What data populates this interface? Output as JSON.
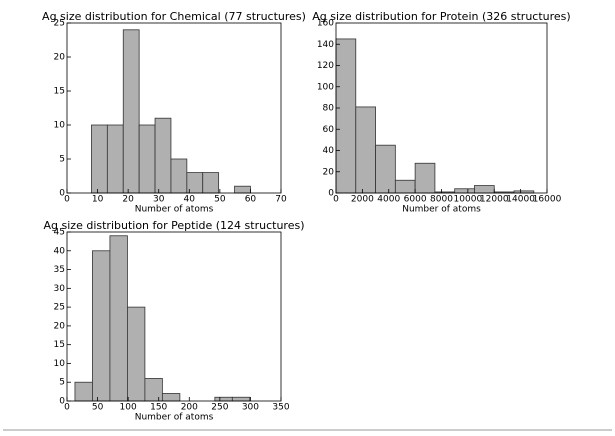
{
  "chart_data": [
    {
      "type": "histogram",
      "title": "Ag size distribution for Chemical (77 structures)",
      "xlabel": "Number of atoms",
      "bins": [
        8,
        13.2,
        18.4,
        23.6,
        28.8,
        34,
        39.2,
        44.4,
        49.6,
        54.8,
        60
      ],
      "values": [
        10,
        10,
        24,
        10,
        11,
        5,
        3,
        3,
        0,
        1
      ],
      "color": "#b0b0b0",
      "xlim": [
        0,
        70
      ],
      "xticks": [
        0,
        10,
        20,
        30,
        40,
        50,
        60,
        70
      ],
      "ylim": [
        0,
        25
      ],
      "yticks": [
        0,
        5,
        10,
        15,
        20,
        25
      ]
    },
    {
      "type": "histogram",
      "title": "Ag size distribution for Protein (326 structures)",
      "xlabel": "Number of atoms",
      "bins": [
        0,
        1500,
        3000,
        4500,
        6000,
        7500,
        9000,
        10500,
        12000,
        13500,
        15000
      ],
      "values": [
        145,
        81,
        45,
        12,
        28,
        1,
        4,
        7,
        1,
        2
      ],
      "color": "#b0b0b0",
      "xlim": [
        0,
        16000
      ],
      "xticks": [
        0,
        2000,
        4000,
        6000,
        8000,
        10000,
        12000,
        14000,
        16000
      ],
      "ylim": [
        0,
        160
      ],
      "yticks": [
        0,
        20,
        40,
        60,
        80,
        100,
        120,
        140,
        160
      ]
    },
    {
      "type": "histogram",
      "title": "Ag size distribution for Peptide (124 structures)",
      "xlabel": "Number of atoms",
      "bins": [
        13,
        41.6,
        70.2,
        98.8,
        127.4,
        156,
        184.6,
        213.2,
        241.8,
        270.4,
        299
      ],
      "values": [
        5,
        40,
        44,
        25,
        6,
        2,
        0,
        0,
        1,
        1
      ],
      "color": "#b0b0b0",
      "xlim": [
        0,
        350
      ],
      "xticks": [
        0,
        50,
        100,
        150,
        200,
        250,
        300,
        350
      ],
      "ylim": [
        0,
        45
      ],
      "yticks": [
        0,
        5,
        10,
        15,
        20,
        25,
        30,
        35,
        40,
        45
      ]
    }
  ]
}
